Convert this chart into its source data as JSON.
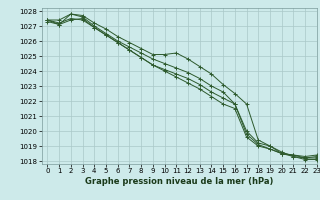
{
  "title": "Graphe pression niveau de la mer (hPa)",
  "background_color": "#cdeaea",
  "grid_color": "#aac8c8",
  "line_color": "#2d5a2d",
  "xlim": [
    -0.5,
    23
  ],
  "ylim": [
    1017.8,
    1028.2
  ],
  "xticks": [
    0,
    1,
    2,
    3,
    4,
    5,
    6,
    7,
    8,
    9,
    10,
    11,
    12,
    13,
    14,
    15,
    16,
    17,
    18,
    19,
    20,
    21,
    22,
    23
  ],
  "yticks": [
    1018,
    1019,
    1020,
    1021,
    1022,
    1023,
    1024,
    1025,
    1026,
    1027,
    1028
  ],
  "series": [
    [
      1027.4,
      1027.4,
      1027.8,
      1027.7,
      1027.2,
      1026.8,
      1026.3,
      1025.9,
      1025.5,
      1025.1,
      1025.1,
      1025.2,
      1024.8,
      1024.3,
      1023.8,
      1023.1,
      1022.5,
      1021.8,
      1019.4,
      1019.0,
      1018.5,
      1018.4,
      1018.3,
      1018.4
    ],
    [
      1027.4,
      1027.1,
      1027.8,
      1027.6,
      1027.0,
      1026.5,
      1026.0,
      1025.6,
      1025.2,
      1024.8,
      1024.5,
      1024.2,
      1023.9,
      1023.5,
      1023.0,
      1022.6,
      1021.8,
      1020.0,
      1019.2,
      1019.0,
      1018.6,
      1018.3,
      1018.1,
      1018.1
    ],
    [
      1027.4,
      1027.2,
      1027.5,
      1027.4,
      1026.9,
      1026.4,
      1025.9,
      1025.4,
      1024.9,
      1024.4,
      1024.1,
      1023.8,
      1023.5,
      1023.1,
      1022.6,
      1022.2,
      1021.8,
      1019.8,
      1019.1,
      1018.8,
      1018.5,
      1018.4,
      1018.2,
      1018.3
    ],
    [
      1027.3,
      1027.1,
      1027.4,
      1027.5,
      1026.9,
      1026.4,
      1025.9,
      1025.4,
      1024.9,
      1024.4,
      1024.0,
      1023.6,
      1023.2,
      1022.8,
      1022.3,
      1021.8,
      1021.5,
      1019.6,
      1019.0,
      1018.8,
      1018.5,
      1018.3,
      1018.2,
      1018.2
    ]
  ],
  "tick_fontsize": 5,
  "label_fontsize": 6,
  "linewidth": 0.7,
  "markersize": 2.5
}
